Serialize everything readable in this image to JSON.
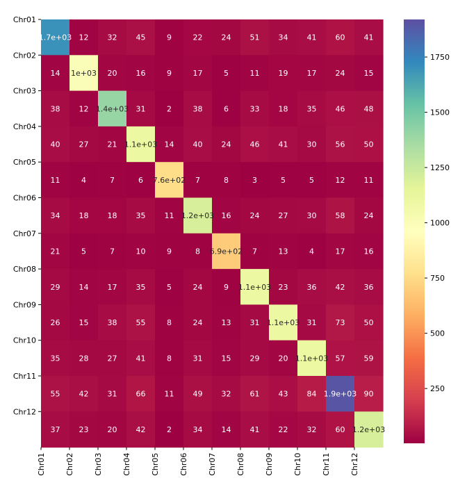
{
  "chart_data": {
    "type": "heatmap",
    "row_labels": [
      "Chr01",
      "Chr02",
      "Chr03",
      "Chr04",
      "Chr05",
      "Chr06",
      "Chr07",
      "Chr08",
      "Chr09",
      "Chr10",
      "Chr11",
      "Chr12"
    ],
    "col_labels": [
      "Chr01",
      "Chr02",
      "Chr03",
      "Chr04",
      "Chr05",
      "Chr06",
      "Chr07",
      "Chr08",
      "Chr09",
      "Chr10",
      "Chr11",
      "Chr12"
    ],
    "values": [
      [
        1700,
        12,
        32,
        45,
        9,
        22,
        24,
        51,
        34,
        41,
        60,
        41
      ],
      [
        14,
        1000,
        20,
        16,
        9,
        17,
        5,
        11,
        19,
        17,
        24,
        15
      ],
      [
        38,
        12,
        1400,
        31,
        2,
        38,
        6,
        33,
        18,
        35,
        46,
        48
      ],
      [
        40,
        27,
        21,
        1100,
        14,
        40,
        24,
        46,
        41,
        30,
        56,
        50
      ],
      [
        11,
        4,
        7,
        6,
        760,
        7,
        8,
        3,
        5,
        5,
        12,
        11
      ],
      [
        34,
        18,
        18,
        35,
        11,
        1200,
        16,
        24,
        27,
        30,
        58,
        24
      ],
      [
        21,
        5,
        7,
        10,
        9,
        8,
        690,
        7,
        13,
        4,
        17,
        16
      ],
      [
        29,
        14,
        17,
        35,
        5,
        24,
        9,
        1100,
        23,
        36,
        42,
        36
      ],
      [
        26,
        15,
        38,
        55,
        8,
        24,
        13,
        31,
        1100,
        31,
        73,
        50
      ],
      [
        35,
        28,
        27,
        41,
        8,
        31,
        15,
        29,
        20,
        1100,
        57,
        59
      ],
      [
        55,
        42,
        31,
        66,
        11,
        49,
        32,
        61,
        43,
        84,
        1900,
        90
      ],
      [
        37,
        23,
        20,
        42,
        2,
        34,
        14,
        41,
        22,
        32,
        60,
        1200
      ]
    ],
    "cell_labels": [
      [
        "1.7e+03",
        "12",
        "32",
        "45",
        "9",
        "22",
        "24",
        "51",
        "34",
        "41",
        "60",
        "41"
      ],
      [
        "14",
        "1e+03",
        "20",
        "16",
        "9",
        "17",
        "5",
        "11",
        "19",
        "17",
        "24",
        "15"
      ],
      [
        "38",
        "12",
        "1.4e+03",
        "31",
        "2",
        "38",
        "6",
        "33",
        "18",
        "35",
        "46",
        "48"
      ],
      [
        "40",
        "27",
        "21",
        "1.1e+03",
        "14",
        "40",
        "24",
        "46",
        "41",
        "30",
        "56",
        "50"
      ],
      [
        "11",
        "4",
        "7",
        "6",
        "7.6e+02",
        "7",
        "8",
        "3",
        "5",
        "5",
        "12",
        "11"
      ],
      [
        "34",
        "18",
        "18",
        "35",
        "11",
        "1.2e+03",
        "16",
        "24",
        "27",
        "30",
        "58",
        "24"
      ],
      [
        "21",
        "5",
        "7",
        "10",
        "9",
        "8",
        "6.9e+02",
        "7",
        "13",
        "4",
        "17",
        "16"
      ],
      [
        "29",
        "14",
        "17",
        "35",
        "5",
        "24",
        "9",
        "1.1e+03",
        "23",
        "36",
        "42",
        "36"
      ],
      [
        "26",
        "15",
        "38",
        "55",
        "8",
        "24",
        "13",
        "31",
        "1.1e+03",
        "31",
        "73",
        "50"
      ],
      [
        "35",
        "28",
        "27",
        "41",
        "8",
        "31",
        "15",
        "29",
        "20",
        "1.1e+03",
        "57",
        "59"
      ],
      [
        "55",
        "42",
        "31",
        "66",
        "11",
        "49",
        "32",
        "61",
        "43",
        "84",
        "1.9e+03",
        "90"
      ],
      [
        "37",
        "23",
        "20",
        "42",
        "2",
        "34",
        "14",
        "41",
        "22",
        "32",
        "60",
        "1.2e+03"
      ]
    ],
    "colormap": "Spectral",
    "vmin": 2,
    "vmax": 1920,
    "colorbar_ticks": [
      250,
      500,
      750,
      1000,
      1250,
      1500,
      1750
    ],
    "colorbar_tick_labels": [
      "250",
      "500",
      "750",
      "1000",
      "1250",
      "1500",
      "1750"
    ],
    "title": "",
    "xlabel": "",
    "ylabel": ""
  }
}
